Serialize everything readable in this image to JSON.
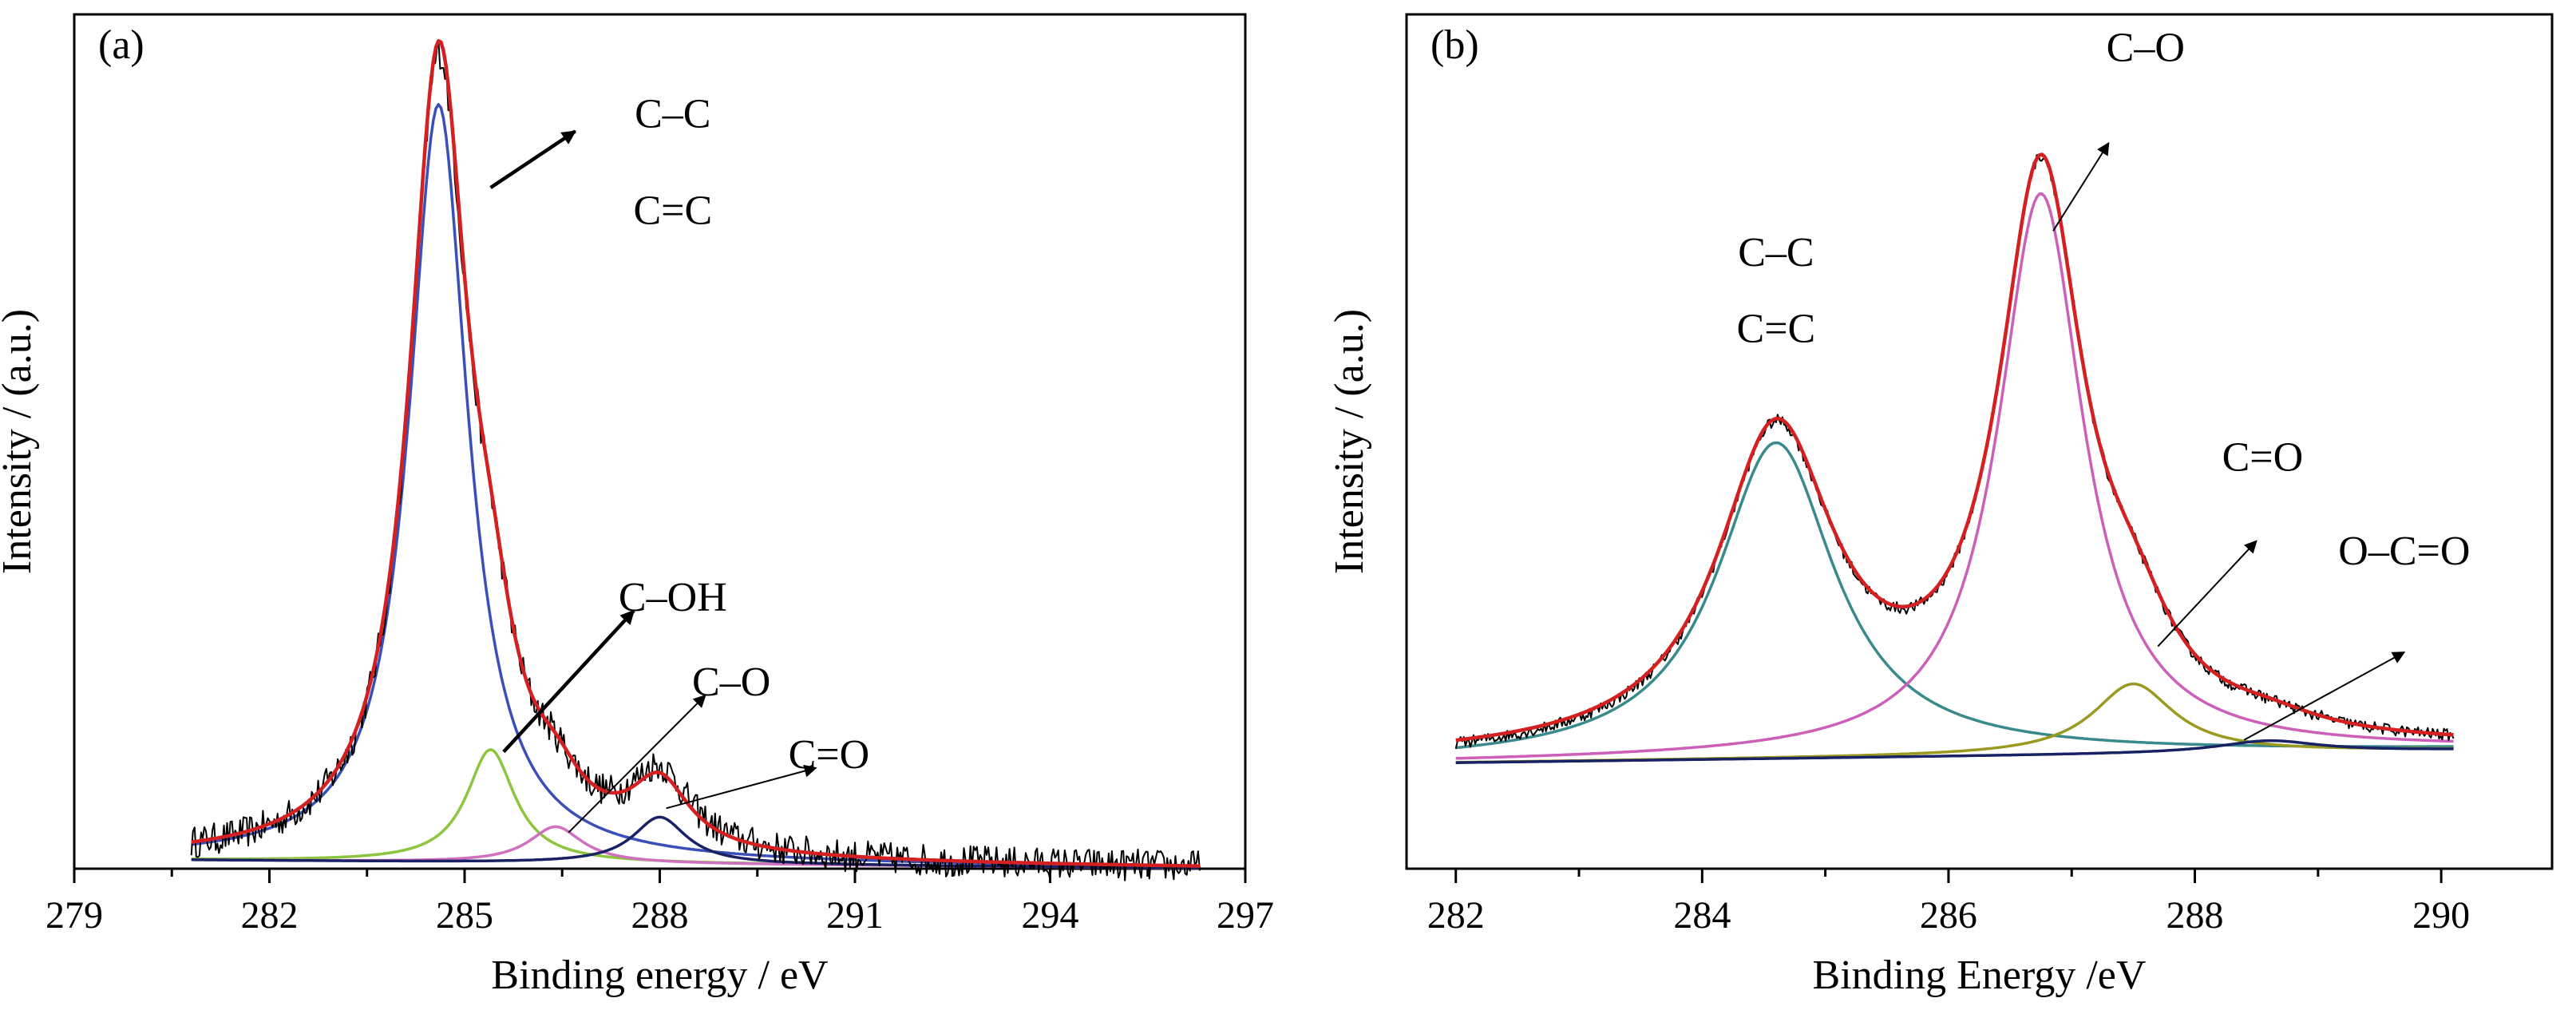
{
  "chart_data": [
    {
      "type": "line",
      "panel_label": "(a)",
      "xlabel": "Binding energy / eV",
      "ylabel": "Intensity / (a.u.)",
      "xlim": [
        279,
        297
      ],
      "ylim": [
        0,
        1.06
      ],
      "xticks": [
        279,
        282,
        285,
        288,
        291,
        294,
        297
      ],
      "yticks_shown": false,
      "raw": {
        "x_start": 280.8,
        "x_end": 296.3,
        "noise": 0.02
      },
      "series": [
        {
          "color": "#000000",
          "kind": "raw",
          "peaks": [
            [
              284.6,
              0.965,
              0.55
            ],
            [
              285.4,
              0.14,
              0.45
            ],
            [
              286.4,
              0.045,
              0.5
            ],
            [
              288.0,
              0.09,
              0.55
            ]
          ],
          "baseline": [
            0.012,
            0.0
          ]
        },
        {
          "color": "#d42020",
          "kind": "envelope",
          "peaks": [
            [
              284.6,
              0.98,
              0.55
            ],
            [
              285.4,
              0.14,
              0.45
            ],
            [
              286.4,
              0.045,
              0.5
            ],
            [
              288.0,
              0.08,
              0.55
            ]
          ],
          "baseline": [
            0.012,
            0.0
          ]
        },
        {
          "color": "#3a50b8",
          "kind": "component",
          "peaks": [
            [
              284.6,
              0.94,
              0.55
            ]
          ],
          "baseline": [
            0.012,
            0.0
          ]
        },
        {
          "color": "#8cc63e",
          "kind": "component",
          "peaks": [
            [
              285.4,
              0.14,
              0.45
            ]
          ],
          "baseline": [
            0.012,
            0.0
          ]
        },
        {
          "color": "#d070c0",
          "kind": "component",
          "peaks": [
            [
              286.4,
              0.045,
              0.5
            ]
          ],
          "baseline": [
            0.012,
            0.0
          ]
        },
        {
          "color": "#1a2266",
          "kind": "component",
          "peaks": [
            [
              288.0,
              0.058,
              0.5
            ]
          ],
          "baseline": [
            0.012,
            0.0
          ]
        }
      ],
      "annotations": [
        {
          "lines": [
            "C–C",
            "C=C"
          ],
          "at": [
            288.2,
            0.92
          ],
          "line_gap": 0.12,
          "arrow_from": [
            285.4,
            0.845
          ],
          "arrow_to": [
            286.7,
            0.915
          ],
          "weight": "bold"
        },
        {
          "lines": [
            "C–OH"
          ],
          "at": [
            288.2,
            0.32
          ],
          "arrow_from": [
            285.6,
            0.145
          ],
          "arrow_to": [
            287.6,
            0.32
          ],
          "weight": "bold"
        },
        {
          "lines": [
            "C–O"
          ],
          "at": [
            289.1,
            0.215
          ],
          "arrow_from": [
            286.6,
            0.045
          ],
          "arrow_to": [
            288.7,
            0.215
          ],
          "weight": "thin"
        },
        {
          "lines": [
            "C=O"
          ],
          "at": [
            290.6,
            0.125
          ],
          "arrow_from": [
            288.1,
            0.075
          ],
          "arrow_to": [
            290.4,
            0.125
          ],
          "weight": "thin"
        }
      ]
    },
    {
      "type": "line",
      "panel_label": "(b)",
      "xlabel": "Binding Energy /eV",
      "ylabel": "Intensity / (a.u.)",
      "xlim": [
        281.6,
        290.9
      ],
      "ylim": [
        -0.3,
        1.16
      ],
      "xticks": [
        282,
        284,
        286,
        288,
        290
      ],
      "yticks_shown": false,
      "raw": {
        "x_start": 282.0,
        "x_end": 290.1,
        "noise": 0.01
      },
      "series": [
        {
          "color": "#000000",
          "kind": "raw",
          "peaks": [
            [
              284.6,
              0.54,
              0.58
            ],
            [
              286.75,
              0.96,
              0.42
            ],
            [
              287.5,
              0.12,
              0.4
            ],
            [
              288.6,
              0.02,
              0.5
            ]
          ],
          "baseline": [
            -0.12,
            -0.095
          ]
        },
        {
          "color": "#d42020",
          "kind": "envelope",
          "peaks": [
            [
              284.6,
              0.54,
              0.58
            ],
            [
              286.75,
              0.96,
              0.42
            ],
            [
              287.5,
              0.12,
              0.4
            ],
            [
              288.6,
              0.02,
              0.5
            ]
          ],
          "baseline": [
            -0.115,
            -0.095
          ]
        },
        {
          "color": "#3a8a8c",
          "kind": "component",
          "peaks": [
            [
              284.6,
              0.54,
              0.58
            ]
          ],
          "baseline": [
            -0.12,
            -0.095
          ]
        },
        {
          "color": "#cc60b8",
          "kind": "component",
          "peaks": [
            [
              286.75,
              0.96,
              0.42
            ]
          ],
          "baseline": [
            -0.12,
            -0.095
          ]
        },
        {
          "color": "#9a9a20",
          "kind": "component",
          "peaks": [
            [
              287.5,
              0.12,
              0.4
            ]
          ],
          "baseline": [
            -0.12,
            -0.095
          ]
        },
        {
          "color": "#1a2266",
          "kind": "component",
          "peaks": [
            [
              288.6,
              0.02,
              0.5
            ]
          ],
          "baseline": [
            -0.12,
            -0.095
          ]
        }
      ],
      "annotations": [
        {
          "lines": [
            "C–C",
            "C=C"
          ],
          "at": [
            284.6,
            0.73
          ],
          "line_gap": 0.13,
          "weight": "none"
        },
        {
          "lines": [
            "C–O"
          ],
          "at": [
            287.6,
            1.08
          ],
          "arrow_from": [
            286.85,
            0.79
          ],
          "arrow_to": [
            287.3,
            0.94
          ],
          "weight": "thin"
        },
        {
          "lines": [
            "C=O"
          ],
          "at": [
            288.55,
            0.38
          ],
          "arrow_from": [
            287.7,
            0.08
          ],
          "arrow_to": [
            288.5,
            0.26
          ],
          "weight": "thin"
        },
        {
          "lines": [
            "O–C=O"
          ],
          "at": [
            289.7,
            0.22
          ],
          "arrow_from": [
            288.4,
            -0.08
          ],
          "arrow_to": [
            289.7,
            0.07
          ],
          "weight": "thin"
        }
      ]
    }
  ]
}
